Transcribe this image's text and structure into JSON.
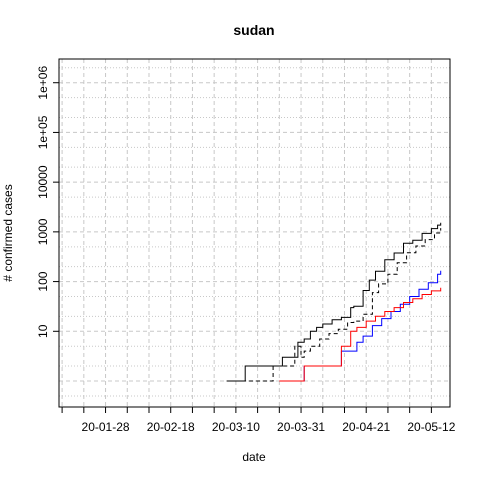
{
  "chart_data": {
    "type": "line",
    "title": "sudan",
    "xlabel": "date",
    "ylabel": "# confirmed cases",
    "y_scale": "log",
    "xlim": [
      "2020-01-13",
      "2020-05-18"
    ],
    "ylim": [
      0.3,
      3000000
    ],
    "grid": true,
    "x_ticks": [
      {
        "date": "2020-01-28",
        "label": "20-01-28"
      },
      {
        "date": "2020-02-18",
        "label": "20-02-18"
      },
      {
        "date": "2020-03-10",
        "label": "20-03-10"
      },
      {
        "date": "2020-03-31",
        "label": "20-03-31"
      },
      {
        "date": "2020-04-21",
        "label": "20-04-21"
      },
      {
        "date": "2020-05-12",
        "label": "20-05-12"
      }
    ],
    "y_ticks": [
      {
        "value": 10,
        "label": "10"
      },
      {
        "value": 100,
        "label": "100"
      },
      {
        "value": 1000,
        "label": "1000"
      },
      {
        "value": 10000,
        "label": "10000"
      },
      {
        "value": 100000,
        "label": "1e+05"
      },
      {
        "value": 1000000,
        "label": "1e+06"
      }
    ],
    "series": [
      {
        "color": "#000000",
        "linestyle": "solid",
        "x": [
          "2020-03-07",
          "2020-03-12",
          "2020-03-13",
          "2020-03-20",
          "2020-03-25",
          "2020-03-26",
          "2020-03-30",
          "2020-04-01",
          "2020-04-03",
          "2020-04-05",
          "2020-04-07",
          "2020-04-10",
          "2020-04-13",
          "2020-04-16",
          "2020-04-17",
          "2020-04-19",
          "2020-04-20",
          "2020-04-22",
          "2020-04-24",
          "2020-04-27",
          "2020-04-30",
          "2020-05-03",
          "2020-05-06",
          "2020-05-09",
          "2020-05-12",
          "2020-05-14",
          "2020-05-15"
        ],
        "y": [
          1,
          1,
          2,
          2,
          3,
          3,
          6,
          7,
          10,
          12,
          14,
          17,
          19,
          30,
          32,
          32,
          66,
          107,
          162,
          275,
          375,
          592,
          678,
          930,
          1164,
          1365,
          1526
        ]
      },
      {
        "color": "#000000",
        "linestyle": "dashed",
        "x": [
          "2020-03-12",
          "2020-03-20",
          "2020-03-22",
          "2020-03-29",
          "2020-03-31",
          "2020-04-01",
          "2020-04-03",
          "2020-04-06",
          "2020-04-09",
          "2020-04-12",
          "2020-04-15",
          "2020-04-17",
          "2020-04-20",
          "2020-04-23",
          "2020-04-25",
          "2020-04-28",
          "2020-05-01",
          "2020-05-04",
          "2020-05-07",
          "2020-05-10",
          "2020-05-13",
          "2020-05-15"
        ],
        "y": [
          1,
          1,
          2,
          5,
          3,
          4,
          5,
          7,
          9,
          11,
          15,
          16,
          22,
          60,
          90,
          140,
          240,
          380,
          520,
          700,
          950,
          1190
        ]
      },
      {
        "color": "#0000ff",
        "linestyle": "solid",
        "x": [
          "2020-03-31",
          "2020-04-01",
          "2020-04-12",
          "2020-04-13",
          "2020-04-16",
          "2020-04-18",
          "2020-04-20",
          "2020-04-23",
          "2020-04-26",
          "2020-04-29",
          "2020-05-02",
          "2020-05-05",
          "2020-05-08",
          "2020-05-11",
          "2020-05-14",
          "2020-05-15"
        ],
        "y": [
          1,
          2,
          2,
          4,
          4,
          6,
          8,
          13,
          18,
          25,
          35,
          50,
          70,
          95,
          140,
          165
        ]
      },
      {
        "color": "#ff0000",
        "linestyle": "solid",
        "x": [
          "2020-03-24",
          "2020-03-31",
          "2020-04-01",
          "2020-04-12",
          "2020-04-13",
          "2020-04-16",
          "2020-04-18",
          "2020-04-21",
          "2020-04-24",
          "2020-04-27",
          "2020-04-30",
          "2020-05-03",
          "2020-05-06",
          "2020-05-09",
          "2020-05-12",
          "2020-05-15"
        ],
        "y": [
          1,
          1,
          2,
          2,
          5,
          10,
          12,
          16,
          20,
          25,
          30,
          38,
          45,
          55,
          65,
          75
        ]
      }
    ]
  }
}
